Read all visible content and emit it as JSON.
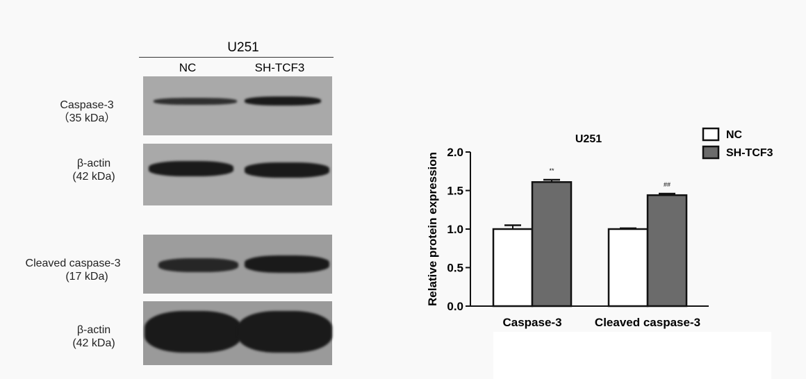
{
  "blot": {
    "cell_line": "U251",
    "lanes": [
      "NC",
      "SH-TCF3"
    ],
    "rows": [
      {
        "name": "Caspase-3",
        "size": "（35 kDa）"
      },
      {
        "name": "β-actin",
        "size": "(42 kDa)"
      },
      {
        "name": "Cleaved caspase-3",
        "size": "(17 kDa)"
      },
      {
        "name": "β-actin",
        "size": "(42 kDa)"
      }
    ]
  },
  "chart_data": {
    "type": "bar",
    "title": "U251",
    "ylabel": "Relative protein expression",
    "xlabel": "",
    "categories": [
      "Caspase-3",
      "Cleaved caspase-3"
    ],
    "ylim": [
      0,
      2.0
    ],
    "yticks": [
      "0.0",
      "0.5",
      "1.0",
      "1.5",
      "2.0"
    ],
    "grid": false,
    "legend_position": "top-right",
    "series": [
      {
        "name": "NC",
        "values": [
          1.0,
          1.0
        ],
        "errors": [
          0.05,
          0.01
        ],
        "color": "#ffffff"
      },
      {
        "name": "SH-TCF3",
        "values": [
          1.61,
          1.44
        ],
        "errors": [
          0.03,
          0.02
        ],
        "color": "#6b6b6b"
      }
    ],
    "annotations": [
      "**",
      "##"
    ]
  }
}
